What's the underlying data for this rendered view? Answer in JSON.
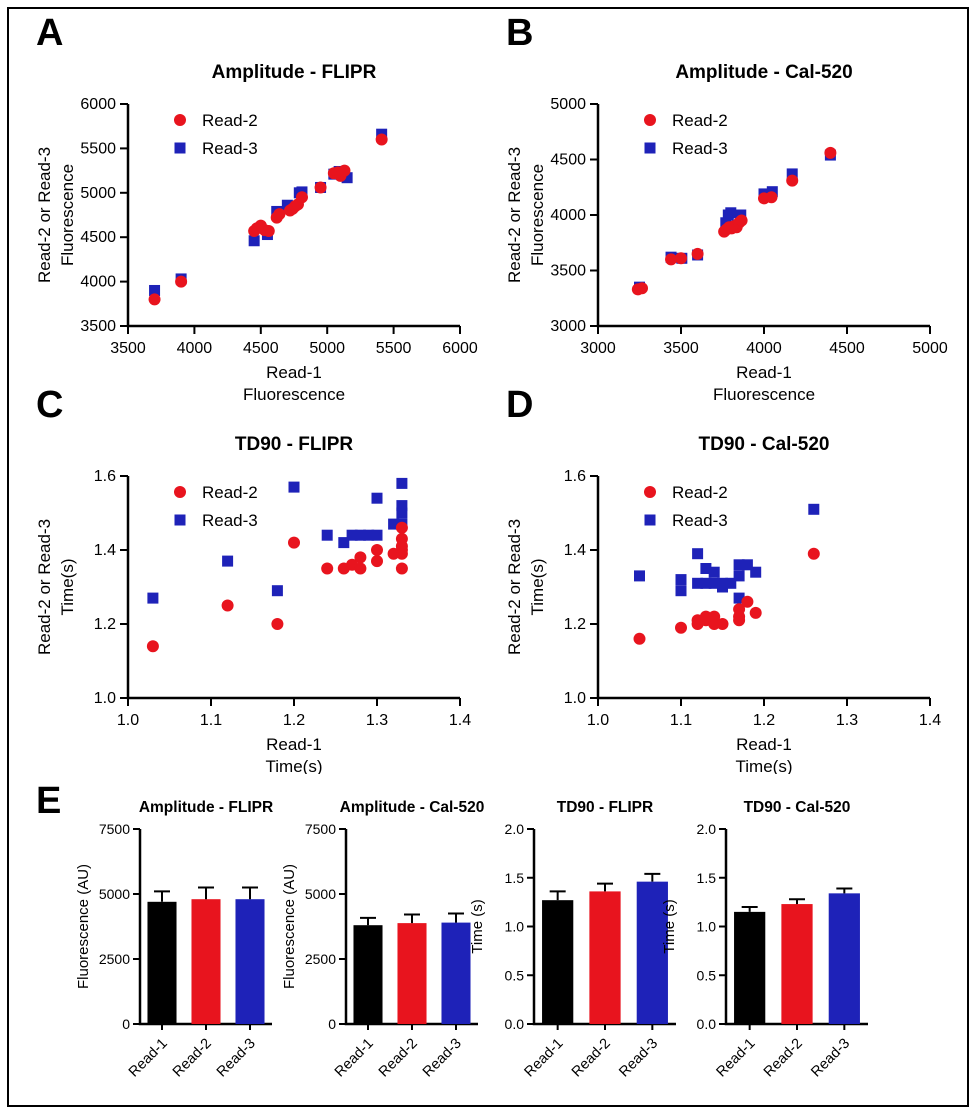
{
  "figure": {
    "background": "#ffffff",
    "border_color": "#000000"
  },
  "panel_labels": [
    "A",
    "B",
    "C",
    "D",
    "E"
  ],
  "colors": {
    "read1": "#000000",
    "read2": "#e8141e",
    "read3": "#1e22b8"
  },
  "chart_data": [
    {
      "panel": "A",
      "type": "scatter",
      "title": "Amplitude - FLIPR",
      "xlabel_lines": [
        "Read-1",
        "Fluorescence"
      ],
      "ylabel_lines": [
        "Read-2 or Read-3",
        "Fluorescence"
      ],
      "xlim": [
        3500,
        6000
      ],
      "ylim": [
        3500,
        6000
      ],
      "xticks": [
        3500,
        4000,
        4500,
        5000,
        5500,
        6000
      ],
      "xtick_labels": [
        "3500",
        "4000",
        "4500",
        "5000",
        "5500",
        "6000"
      ],
      "yticks": [
        3500,
        4000,
        4500,
        5000,
        5500,
        6000
      ],
      "ytick_labels": [
        "3500",
        "4000",
        "4500",
        "5000",
        "5500",
        "6000"
      ],
      "legend_position": "top-left",
      "series": [
        {
          "name": "Read-2",
          "marker": "circle",
          "color": "#e8141e",
          "points": [
            [
              3700,
              3800
            ],
            [
              3900,
              4000
            ],
            [
              4450,
              4570
            ],
            [
              4470,
              4600
            ],
            [
              4500,
              4630
            ],
            [
              4530,
              4580
            ],
            [
              4560,
              4570
            ],
            [
              4620,
              4720
            ],
            [
              4640,
              4760
            ],
            [
              4720,
              4800
            ],
            [
              4740,
              4820
            ],
            [
              4760,
              4850
            ],
            [
              4780,
              4870
            ],
            [
              4810,
              4950
            ],
            [
              4950,
              5060
            ],
            [
              5050,
              5220
            ],
            [
              5080,
              5230
            ],
            [
              5100,
              5190
            ],
            [
              5130,
              5250
            ],
            [
              5410,
              5600
            ]
          ]
        },
        {
          "name": "Read-3",
          "marker": "square",
          "color": "#1e22b8",
          "points": [
            [
              3700,
              3900
            ],
            [
              3900,
              4030
            ],
            [
              4450,
              4460
            ],
            [
              4550,
              4530
            ],
            [
              4620,
              4790
            ],
            [
              4700,
              4860
            ],
            [
              4790,
              5000
            ],
            [
              4810,
              5010
            ],
            [
              4950,
              5060
            ],
            [
              5050,
              5210
            ],
            [
              5090,
              5240
            ],
            [
              5150,
              5170
            ],
            [
              5410,
              5660
            ]
          ]
        }
      ]
    },
    {
      "panel": "B",
      "type": "scatter",
      "title": "Amplitude - Cal-520",
      "xlabel_lines": [
        "Read-1",
        "Fluorescence"
      ],
      "ylabel_lines": [
        "Read-2 or Read-3",
        "Fluorescence"
      ],
      "xlim": [
        3000,
        5000
      ],
      "ylim": [
        3000,
        5000
      ],
      "xticks": [
        3000,
        3500,
        4000,
        4500,
        5000
      ],
      "xtick_labels": [
        "3000",
        "3500",
        "4000",
        "4500",
        "5000"
      ],
      "yticks": [
        3000,
        3500,
        4000,
        4500,
        5000
      ],
      "ytick_labels": [
        "3000",
        "3500",
        "4000",
        "4500",
        "5000"
      ],
      "legend_position": "top-left",
      "series": [
        {
          "name": "Read-2",
          "marker": "circle",
          "color": "#e8141e",
          "points": [
            [
              3240,
              3330
            ],
            [
              3265,
              3340
            ],
            [
              3440,
              3600
            ],
            [
              3500,
              3610
            ],
            [
              3600,
              3650
            ],
            [
              3760,
              3850
            ],
            [
              3775,
              3870
            ],
            [
              3790,
              3890
            ],
            [
              3805,
              3880
            ],
            [
              3820,
              3900
            ],
            [
              3835,
              3890
            ],
            [
              3850,
              3930
            ],
            [
              3865,
              3950
            ],
            [
              4000,
              4150
            ],
            [
              4045,
              4160
            ],
            [
              4170,
              4310
            ],
            [
              4400,
              4560
            ]
          ]
        },
        {
          "name": "Read-3",
          "marker": "square",
          "color": "#1e22b8",
          "points": [
            [
              3250,
              3350
            ],
            [
              3440,
              3620
            ],
            [
              3505,
              3610
            ],
            [
              3600,
              3640
            ],
            [
              3770,
              3930
            ],
            [
              3785,
              4000
            ],
            [
              3800,
              4020
            ],
            [
              3860,
              4000
            ],
            [
              4000,
              4190
            ],
            [
              4050,
              4210
            ],
            [
              4170,
              4370
            ],
            [
              4400,
              4540
            ]
          ]
        }
      ]
    },
    {
      "panel": "C",
      "type": "scatter",
      "title": "TD90 - FLIPR",
      "xlabel_lines": [
        "Read-1",
        "Time(s)"
      ],
      "ylabel_lines": [
        "Read-2 or Read-3",
        "Time(s)"
      ],
      "xlim": [
        1.0,
        1.4
      ],
      "ylim": [
        1.0,
        1.6
      ],
      "xticks": [
        1.0,
        1.1,
        1.2,
        1.3,
        1.4
      ],
      "xtick_labels": [
        "1.0",
        "1.1",
        "1.2",
        "1.3",
        "1.4"
      ],
      "yticks": [
        1.0,
        1.2,
        1.4,
        1.6
      ],
      "ytick_labels": [
        "1.0",
        "1.2",
        "1.4",
        "1.6"
      ],
      "legend_position": "top-left",
      "series": [
        {
          "name": "Read-2",
          "marker": "circle",
          "color": "#e8141e",
          "points": [
            [
              1.03,
              1.14
            ],
            [
              1.12,
              1.25
            ],
            [
              1.18,
              1.2
            ],
            [
              1.2,
              1.42
            ],
            [
              1.24,
              1.35
            ],
            [
              1.26,
              1.35
            ],
            [
              1.27,
              1.36
            ],
            [
              1.28,
              1.35
            ],
            [
              1.28,
              1.38
            ],
            [
              1.3,
              1.37
            ],
            [
              1.3,
              1.4
            ],
            [
              1.32,
              1.39
            ],
            [
              1.33,
              1.35
            ],
            [
              1.33,
              1.39
            ],
            [
              1.33,
              1.4
            ],
            [
              1.33,
              1.41
            ],
            [
              1.33,
              1.43
            ],
            [
              1.33,
              1.46
            ]
          ]
        },
        {
          "name": "Read-3",
          "marker": "square",
          "color": "#1e22b8",
          "points": [
            [
              1.03,
              1.27
            ],
            [
              1.12,
              1.37
            ],
            [
              1.18,
              1.29
            ],
            [
              1.2,
              1.57
            ],
            [
              1.24,
              1.44
            ],
            [
              1.26,
              1.42
            ],
            [
              1.27,
              1.44
            ],
            [
              1.28,
              1.44
            ],
            [
              1.29,
              1.44
            ],
            [
              1.3,
              1.44
            ],
            [
              1.3,
              1.54
            ],
            [
              1.32,
              1.47
            ],
            [
              1.33,
              1.47
            ],
            [
              1.33,
              1.5
            ],
            [
              1.33,
              1.52
            ],
            [
              1.33,
              1.58
            ]
          ]
        }
      ]
    },
    {
      "panel": "D",
      "type": "scatter",
      "title": "TD90 - Cal-520",
      "xlabel_lines": [
        "Read-1",
        "Time(s)"
      ],
      "ylabel_lines": [
        "Read-2 or Read-3",
        "Time(s)"
      ],
      "xlim": [
        1.0,
        1.4
      ],
      "ylim": [
        1.0,
        1.6
      ],
      "xticks": [
        1.0,
        1.1,
        1.2,
        1.3,
        1.4
      ],
      "xtick_labels": [
        "1.0",
        "1.1",
        "1.2",
        "1.3",
        "1.4"
      ],
      "yticks": [
        1.0,
        1.2,
        1.4,
        1.6
      ],
      "ytick_labels": [
        "1.0",
        "1.2",
        "1.4",
        "1.6"
      ],
      "legend_position": "top-left",
      "series": [
        {
          "name": "Read-2",
          "marker": "circle",
          "color": "#e8141e",
          "points": [
            [
              1.05,
              1.16
            ],
            [
              1.1,
              1.19
            ],
            [
              1.12,
              1.2
            ],
            [
              1.12,
              1.21
            ],
            [
              1.13,
              1.21
            ],
            [
              1.13,
              1.22
            ],
            [
              1.14,
              1.2
            ],
            [
              1.14,
              1.22
            ],
            [
              1.15,
              1.2
            ],
            [
              1.17,
              1.21
            ],
            [
              1.17,
              1.22
            ],
            [
              1.17,
              1.24
            ],
            [
              1.18,
              1.26
            ],
            [
              1.19,
              1.23
            ],
            [
              1.26,
              1.39
            ]
          ]
        },
        {
          "name": "Read-3",
          "marker": "square",
          "color": "#1e22b8",
          "points": [
            [
              1.05,
              1.33
            ],
            [
              1.1,
              1.29
            ],
            [
              1.1,
              1.32
            ],
            [
              1.12,
              1.31
            ],
            [
              1.12,
              1.39
            ],
            [
              1.13,
              1.31
            ],
            [
              1.13,
              1.35
            ],
            [
              1.14,
              1.31
            ],
            [
              1.14,
              1.34
            ],
            [
              1.15,
              1.3
            ],
            [
              1.15,
              1.31
            ],
            [
              1.16,
              1.31
            ],
            [
              1.17,
              1.27
            ],
            [
              1.17,
              1.33
            ],
            [
              1.17,
              1.36
            ],
            [
              1.18,
              1.36
            ],
            [
              1.19,
              1.34
            ],
            [
              1.26,
              1.51
            ]
          ]
        }
      ]
    },
    {
      "panel": "E",
      "type": "bar",
      "title": "Amplitude - FLIPR",
      "ylabel": "Fluorescence (AU)",
      "ylim": [
        0,
        7500
      ],
      "yticks": [
        0,
        2500,
        5000,
        7500
      ],
      "ytick_labels": [
        "0",
        "2500",
        "5000",
        "7500"
      ],
      "categories": [
        "Read-1",
        "Read-2",
        "Read-3"
      ],
      "values": [
        4700,
        4800,
        4800
      ],
      "errors": [
        400,
        450,
        450
      ],
      "bar_colors": [
        "#000000",
        "#e8141e",
        "#1e22b8"
      ]
    },
    {
      "panel": "E",
      "type": "bar",
      "title": "Amplitude - Cal-520",
      "ylabel": "Fluorescence (AU)",
      "ylim": [
        0,
        7500
      ],
      "yticks": [
        0,
        2500,
        5000,
        7500
      ],
      "ytick_labels": [
        "0",
        "2500",
        "5000",
        "7500"
      ],
      "categories": [
        "Read-1",
        "Read-2",
        "Read-3"
      ],
      "values": [
        3800,
        3880,
        3900
      ],
      "errors": [
        280,
        330,
        350
      ],
      "bar_colors": [
        "#000000",
        "#e8141e",
        "#1e22b8"
      ]
    },
    {
      "panel": "E",
      "type": "bar",
      "title": "TD90 - FLIPR",
      "ylabel": "Time (s)",
      "ylim": [
        0,
        2.0
      ],
      "yticks": [
        0,
        0.5,
        1.0,
        1.5,
        2.0
      ],
      "ytick_labels": [
        "0.0",
        "0.5",
        "1.0",
        "1.5",
        "2.0"
      ],
      "categories": [
        "Read-1",
        "Read-2",
        "Read-3"
      ],
      "values": [
        1.27,
        1.36,
        1.46
      ],
      "errors": [
        0.09,
        0.08,
        0.08
      ],
      "bar_colors": [
        "#000000",
        "#e8141e",
        "#1e22b8"
      ]
    },
    {
      "panel": "E",
      "type": "bar",
      "title": "TD90 - Cal-520",
      "ylabel": "Time (s)",
      "ylim": [
        0,
        2.0
      ],
      "yticks": [
        0,
        0.5,
        1.0,
        1.5,
        2.0
      ],
      "ytick_labels": [
        "0.0",
        "0.5",
        "1.0",
        "1.5",
        "2.0"
      ],
      "categories": [
        "Read-1",
        "Read-2",
        "Read-3"
      ],
      "values": [
        1.15,
        1.23,
        1.34
      ],
      "errors": [
        0.05,
        0.05,
        0.05
      ],
      "bar_colors": [
        "#000000",
        "#e8141e",
        "#1e22b8"
      ]
    }
  ]
}
